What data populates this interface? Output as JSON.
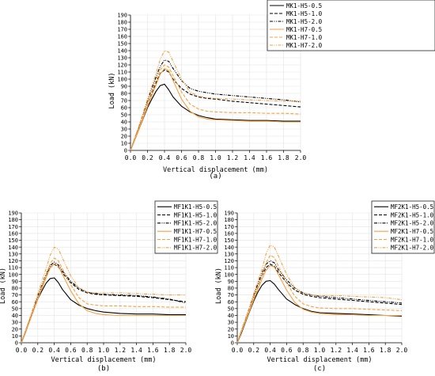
{
  "colors": {
    "black": "#000000",
    "orange": "#f5a142",
    "grid": "#e3e3e3",
    "axis": "#000000"
  },
  "chart_data": [
    {
      "type": "line",
      "caption": "(a)",
      "xlabel": "Vertical displacement (mm)",
      "ylabel": "Load (kN)",
      "xlim": [
        0,
        2.0
      ],
      "ylim": [
        0,
        190
      ],
      "xticks": [
        0,
        0.2,
        0.4,
        0.6,
        0.8,
        1.0,
        1.2,
        1.4,
        1.6,
        1.8,
        2.0
      ],
      "yticks": [
        0,
        10,
        20,
        30,
        40,
        50,
        60,
        70,
        80,
        90,
        100,
        110,
        120,
        130,
        140,
        150,
        160,
        170,
        180,
        190
      ],
      "grid": true,
      "legend_position": "top-right",
      "series": [
        {
          "name": "MK1-H5-0.5",
          "color": "black",
          "dash": "solid",
          "x": [
            0,
            0.05,
            0.1,
            0.15,
            0.2,
            0.25,
            0.3,
            0.35,
            0.4,
            0.45,
            0.5,
            0.6,
            0.7,
            0.8,
            0.9,
            1.0,
            1.2,
            1.4,
            1.6,
            1.8,
            2.0
          ],
          "y": [
            0,
            15,
            30,
            45,
            60,
            72,
            83,
            91,
            93,
            85,
            75,
            62,
            54,
            49,
            46,
            44,
            43,
            42,
            42,
            41,
            41
          ]
        },
        {
          "name": "MK1-H5-1.0",
          "color": "black",
          "dash": "dash",
          "x": [
            0,
            0.1,
            0.2,
            0.3,
            0.35,
            0.4,
            0.45,
            0.5,
            0.6,
            0.7,
            0.8,
            0.9,
            1.0,
            1.2,
            1.4,
            1.6,
            1.8,
            2.0
          ],
          "y": [
            0,
            33,
            66,
            95,
            108,
            113,
            110,
            100,
            87,
            79,
            75,
            73,
            72,
            69,
            67,
            65,
            63,
            61
          ]
        },
        {
          "name": "MK1-H5-2.0",
          "color": "black",
          "dash": "dashdotdot",
          "x": [
            0,
            0.1,
            0.2,
            0.3,
            0.35,
            0.4,
            0.45,
            0.5,
            0.6,
            0.7,
            0.8,
            0.9,
            1.0,
            1.2,
            1.4,
            1.6,
            1.8,
            2.0
          ],
          "y": [
            0,
            34,
            70,
            103,
            118,
            127,
            125,
            115,
            98,
            87,
            83,
            81,
            79,
            77,
            75,
            73,
            71,
            68
          ]
        },
        {
          "name": "MK1-H7-0.5",
          "color": "orange",
          "dash": "solid",
          "x": [
            0,
            0.1,
            0.2,
            0.3,
            0.35,
            0.4,
            0.45,
            0.5,
            0.6,
            0.7,
            0.8,
            0.9,
            1.0,
            1.2,
            1.4,
            1.6,
            1.8,
            2.0
          ],
          "y": [
            0,
            30,
            62,
            92,
            107,
            115,
            112,
            98,
            72,
            55,
            47,
            44,
            43,
            42,
            41,
            41,
            40,
            40
          ]
        },
        {
          "name": "MK1-H7-1.0",
          "color": "orange",
          "dash": "dash",
          "x": [
            0,
            0.1,
            0.2,
            0.3,
            0.35,
            0.4,
            0.45,
            0.5,
            0.6,
            0.7,
            0.8,
            0.9,
            1.0,
            1.2,
            1.4,
            1.6,
            1.8,
            2.0
          ],
          "y": [
            0,
            32,
            66,
            98,
            113,
            120,
            117,
            105,
            82,
            65,
            58,
            55,
            54,
            53,
            53,
            52,
            52,
            51
          ]
        },
        {
          "name": "MK1-H7-2.0",
          "color": "orange",
          "dash": "dashdotdot",
          "x": [
            0,
            0.1,
            0.2,
            0.3,
            0.35,
            0.4,
            0.45,
            0.5,
            0.6,
            0.7,
            0.8,
            0.9,
            1.0,
            1.2,
            1.4,
            1.6,
            1.8,
            2.0
          ],
          "y": [
            0,
            35,
            72,
            108,
            128,
            140,
            138,
            125,
            100,
            82,
            76,
            74,
            73,
            72,
            71,
            70,
            69,
            69
          ]
        }
      ]
    },
    {
      "type": "line",
      "caption": "(b)",
      "xlabel": "Vertical displacement (mm)",
      "ylabel": "Load (kN)",
      "xlim": [
        0,
        2.0
      ],
      "ylim": [
        0,
        190
      ],
      "xticks": [
        0,
        0.2,
        0.4,
        0.6,
        0.8,
        1.0,
        1.2,
        1.4,
        1.6,
        1.8,
        2.0
      ],
      "yticks": [
        0,
        10,
        20,
        30,
        40,
        50,
        60,
        70,
        80,
        90,
        100,
        110,
        120,
        130,
        140,
        150,
        160,
        170,
        180,
        190
      ],
      "grid": true,
      "legend_position": "top-right",
      "series": [
        {
          "name": "MF1K1-H5-0.5",
          "color": "black",
          "dash": "solid",
          "x": [
            0,
            0.05,
            0.1,
            0.15,
            0.2,
            0.25,
            0.3,
            0.35,
            0.4,
            0.45,
            0.5,
            0.6,
            0.7,
            0.8,
            0.9,
            1.0,
            1.2,
            1.4,
            1.6,
            1.8,
            2.0
          ],
          "y": [
            0,
            15,
            32,
            48,
            64,
            76,
            87,
            94,
            95,
            88,
            78,
            63,
            55,
            50,
            47,
            45,
            43,
            42,
            42,
            41,
            41
          ]
        },
        {
          "name": "MF1K1-H5-1.0",
          "color": "black",
          "dash": "dash",
          "x": [
            0,
            0.1,
            0.2,
            0.3,
            0.35,
            0.4,
            0.45,
            0.5,
            0.6,
            0.7,
            0.8,
            0.9,
            1.0,
            1.2,
            1.4,
            1.6,
            1.8,
            2.0
          ],
          "y": [
            0,
            33,
            66,
            98,
            110,
            115,
            111,
            102,
            88,
            78,
            73,
            71,
            70,
            69,
            68,
            66,
            63,
            60
          ]
        },
        {
          "name": "MF1K1-H5-2.0",
          "color": "black",
          "dash": "dashdotdot",
          "x": [
            0,
            0.1,
            0.2,
            0.3,
            0.35,
            0.4,
            0.45,
            0.5,
            0.6,
            0.7,
            0.8,
            0.9,
            1.0,
            1.2,
            1.4,
            1.6,
            1.8,
            2.0
          ],
          "y": [
            0,
            34,
            68,
            100,
            113,
            118,
            114,
            105,
            90,
            80,
            74,
            72,
            71,
            70,
            69,
            67,
            64,
            58
          ]
        },
        {
          "name": "MF1K1-H7-0.5",
          "color": "orange",
          "dash": "solid",
          "x": [
            0,
            0.1,
            0.2,
            0.3,
            0.35,
            0.4,
            0.45,
            0.5,
            0.6,
            0.7,
            0.8,
            0.9,
            1.0,
            1.2,
            1.4,
            1.6,
            1.8,
            2.0
          ],
          "y": [
            0,
            31,
            64,
            95,
            109,
            116,
            112,
            100,
            76,
            57,
            47,
            43,
            41,
            40,
            40,
            40,
            40,
            40
          ]
        },
        {
          "name": "MF1K1-H7-1.0",
          "color": "orange",
          "dash": "dash",
          "x": [
            0,
            0.1,
            0.2,
            0.3,
            0.35,
            0.4,
            0.45,
            0.5,
            0.6,
            0.7,
            0.8,
            0.9,
            1.0,
            1.2,
            1.4,
            1.6,
            1.8,
            2.0
          ],
          "y": [
            0,
            32,
            66,
            99,
            116,
            124,
            120,
            108,
            85,
            66,
            57,
            55,
            54,
            54,
            53,
            53,
            52,
            52
          ]
        },
        {
          "name": "MF1K1-H7-2.0",
          "color": "orange",
          "dash": "dashdotdot",
          "x": [
            0,
            0.1,
            0.2,
            0.3,
            0.35,
            0.4,
            0.45,
            0.5,
            0.6,
            0.7,
            0.8,
            0.9,
            1.0,
            1.2,
            1.4,
            1.6,
            1.8,
            2.0
          ],
          "y": [
            0,
            35,
            72,
            108,
            128,
            140,
            137,
            124,
            98,
            80,
            74,
            73,
            73,
            73,
            72,
            71,
            70,
            70
          ]
        }
      ]
    },
    {
      "type": "line",
      "caption": "(c)",
      "xlabel": "Vertical displacement (mm)",
      "ylabel": "Load (kN)",
      "xlim": [
        0,
        2.0
      ],
      "ylim": [
        0,
        190
      ],
      "xticks": [
        0,
        0.2,
        0.4,
        0.6,
        0.8,
        1.0,
        1.2,
        1.4,
        1.6,
        1.8,
        2.0
      ],
      "yticks": [
        0,
        10,
        20,
        30,
        40,
        50,
        60,
        70,
        80,
        90,
        100,
        110,
        120,
        130,
        140,
        150,
        160,
        170,
        180,
        190
      ],
      "grid": true,
      "legend_position": "top-right",
      "series": [
        {
          "name": "MF2K1-H5-0.5",
          "color": "black",
          "dash": "solid",
          "x": [
            0,
            0.05,
            0.1,
            0.15,
            0.2,
            0.25,
            0.3,
            0.35,
            0.4,
            0.45,
            0.5,
            0.6,
            0.7,
            0.8,
            0.9,
            1.0,
            1.2,
            1.4,
            1.6,
            1.8,
            2.0
          ],
          "y": [
            0,
            14,
            30,
            46,
            61,
            74,
            84,
            90,
            91,
            86,
            78,
            64,
            56,
            50,
            46,
            44,
            43,
            42,
            41,
            40,
            39
          ]
        },
        {
          "name": "MF2K1-H5-1.0",
          "color": "black",
          "dash": "dash",
          "x": [
            0,
            0.1,
            0.2,
            0.3,
            0.35,
            0.4,
            0.45,
            0.5,
            0.6,
            0.7,
            0.8,
            0.9,
            1.0,
            1.2,
            1.4,
            1.6,
            1.8,
            2.0
          ],
          "y": [
            0,
            33,
            66,
            98,
            110,
            115,
            112,
            103,
            88,
            77,
            71,
            68,
            66,
            64,
            62,
            60,
            58,
            56
          ]
        },
        {
          "name": "MF2K1-H5-2.0",
          "color": "black",
          "dash": "dashdotdot",
          "x": [
            0,
            0.1,
            0.2,
            0.3,
            0.35,
            0.4,
            0.45,
            0.5,
            0.6,
            0.7,
            0.8,
            0.9,
            1.0,
            1.2,
            1.4,
            1.6,
            1.8,
            2.0
          ],
          "y": [
            0,
            35,
            70,
            102,
            115,
            120,
            117,
            107,
            92,
            80,
            73,
            70,
            68,
            66,
            64,
            62,
            60,
            58
          ]
        },
        {
          "name": "MF2K1-H7-0.5",
          "color": "orange",
          "dash": "solid",
          "x": [
            0,
            0.1,
            0.2,
            0.3,
            0.35,
            0.4,
            0.45,
            0.5,
            0.6,
            0.7,
            0.8,
            0.9,
            1.0,
            1.2,
            1.4,
            1.6,
            1.8,
            2.0
          ],
          "y": [
            0,
            31,
            63,
            93,
            106,
            113,
            111,
            100,
            77,
            59,
            49,
            45,
            43,
            41,
            41,
            40,
            40,
            40
          ]
        },
        {
          "name": "MF2K1-H7-1.0",
          "color": "orange",
          "dash": "dash",
          "x": [
            0,
            0.1,
            0.2,
            0.3,
            0.35,
            0.4,
            0.45,
            0.5,
            0.6,
            0.7,
            0.8,
            0.9,
            1.0,
            1.2,
            1.4,
            1.6,
            1.8,
            2.0
          ],
          "y": [
            0,
            32,
            66,
            98,
            117,
            128,
            125,
            112,
            88,
            68,
            57,
            53,
            51,
            50,
            50,
            49,
            48,
            47
          ]
        },
        {
          "name": "MF2K1-H7-2.0",
          "color": "orange",
          "dash": "dashdotdot",
          "x": [
            0,
            0.1,
            0.2,
            0.3,
            0.35,
            0.4,
            0.45,
            0.5,
            0.6,
            0.7,
            0.8,
            0.9,
            1.0,
            1.2,
            1.4,
            1.6,
            1.8,
            2.0
          ],
          "y": [
            0,
            35,
            72,
            108,
            130,
            143,
            140,
            127,
            100,
            80,
            72,
            70,
            69,
            69,
            68,
            67,
            66,
            63
          ]
        }
      ]
    }
  ]
}
